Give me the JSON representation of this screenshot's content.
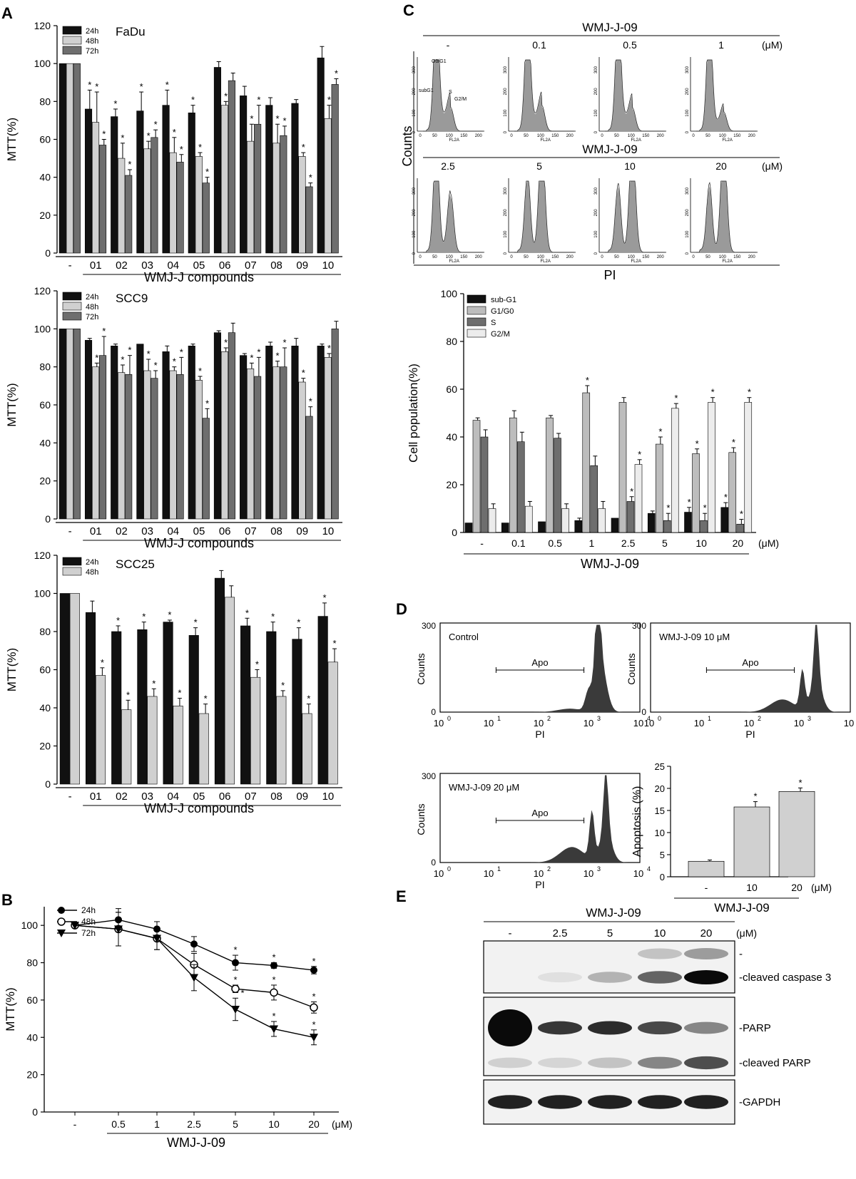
{
  "panels": {
    "A": "A",
    "B": "B",
    "C": "C",
    "D": "D",
    "E": "E"
  },
  "chart_data": [
    {
      "id": "A1",
      "type": "bar",
      "title": "FaDu",
      "xlabel": "WMJ-J compounds",
      "ylabel": "MTT(%)",
      "ylim": [
        0,
        120
      ],
      "yticks": [
        0,
        20,
        40,
        60,
        80,
        100,
        120
      ],
      "categories": [
        "-",
        "01",
        "02",
        "03",
        "04",
        "05",
        "06",
        "07",
        "08",
        "09",
        "10"
      ],
      "series": [
        {
          "name": "24h",
          "color": "#111111",
          "values": [
            100,
            76,
            72,
            75,
            78,
            74,
            98,
            83,
            78,
            79,
            103
          ],
          "err": [
            0,
            10,
            4,
            10,
            8,
            4,
            3,
            5,
            4,
            2,
            6
          ],
          "sig": [
            false,
            true,
            true,
            true,
            true,
            true,
            false,
            false,
            false,
            false,
            false
          ]
        },
        {
          "name": "48h",
          "color": "#d0d0d0",
          "values": [
            100,
            69,
            50,
            55,
            53,
            51,
            78,
            59,
            58,
            51,
            71
          ],
          "err": [
            0,
            16,
            8,
            4,
            8,
            2,
            2,
            9,
            10,
            2,
            7
          ],
          "sig": [
            false,
            true,
            true,
            true,
            true,
            true,
            true,
            true,
            true,
            true,
            true
          ]
        },
        {
          "name": "72h",
          "color": "#6e6e6e",
          "values": [
            100,
            57,
            41,
            61,
            48,
            37,
            91,
            68,
            62,
            35,
            89
          ],
          "err": [
            0,
            3,
            3,
            4,
            4,
            3,
            4,
            10,
            5,
            2,
            3
          ],
          "sig": [
            false,
            true,
            true,
            true,
            true,
            true,
            false,
            true,
            true,
            true,
            true
          ]
        }
      ]
    },
    {
      "id": "A2",
      "type": "bar",
      "title": "SCC9",
      "xlabel": "WMJ-J compounds",
      "ylabel": "MTT(%)",
      "ylim": [
        0,
        120
      ],
      "yticks": [
        0,
        20,
        40,
        60,
        80,
        100,
        120
      ],
      "categories": [
        "-",
        "01",
        "02",
        "03",
        "04",
        "05",
        "06",
        "07",
        "08",
        "09",
        "10"
      ],
      "series": [
        {
          "name": "24h",
          "color": "#111111",
          "values": [
            100,
            94,
            91,
            92,
            88,
            91,
            98,
            86,
            91,
            91,
            91
          ],
          "err": [
            0,
            1,
            1,
            0,
            3,
            1,
            1,
            1,
            2,
            4,
            1
          ],
          "sig": [
            false,
            false,
            false,
            false,
            false,
            false,
            false,
            false,
            false,
            false,
            false
          ]
        },
        {
          "name": "48h",
          "color": "#d0d0d0",
          "values": [
            100,
            80,
            77,
            78,
            78,
            73,
            88,
            79,
            80,
            72,
            85
          ],
          "err": [
            0,
            2,
            4,
            6,
            2,
            2,
            2,
            3,
            3,
            2,
            2
          ],
          "sig": [
            false,
            true,
            true,
            true,
            true,
            true,
            true,
            true,
            true,
            true,
            true
          ]
        },
        {
          "name": "72h",
          "color": "#6e6e6e",
          "values": [
            100,
            86,
            76,
            74,
            76,
            53,
            98,
            75,
            80,
            54,
            100
          ],
          "err": [
            0,
            10,
            10,
            4,
            9,
            5,
            5,
            10,
            10,
            5,
            4
          ],
          "sig": [
            false,
            true,
            true,
            true,
            true,
            true,
            false,
            true,
            true,
            true,
            false
          ]
        }
      ]
    },
    {
      "id": "A3",
      "type": "bar",
      "title": "SCC25",
      "xlabel": "WMJ-J compounds",
      "ylabel": "MTT(%)",
      "ylim": [
        0,
        120
      ],
      "yticks": [
        0,
        20,
        40,
        60,
        80,
        100,
        120
      ],
      "categories": [
        "-",
        "01",
        "02",
        "03",
        "04",
        "05",
        "06",
        "07",
        "08",
        "09",
        "10"
      ],
      "series": [
        {
          "name": "24h",
          "color": "#111111",
          "values": [
            100,
            90,
            80,
            81,
            85,
            78,
            108,
            83,
            80,
            76,
            88
          ],
          "err": [
            0,
            6,
            3,
            4,
            1,
            4,
            4,
            4,
            5,
            6,
            7
          ],
          "sig": [
            false,
            false,
            true,
            true,
            true,
            true,
            false,
            true,
            true,
            true,
            true
          ]
        },
        {
          "name": "48h",
          "color": "#d0d0d0",
          "values": [
            100,
            57,
            39,
            46,
            41,
            37,
            98,
            56,
            46,
            37,
            64
          ],
          "err": [
            0,
            4,
            5,
            4,
            4,
            5,
            6,
            4,
            3,
            5,
            7
          ],
          "sig": [
            false,
            true,
            true,
            true,
            true,
            true,
            false,
            true,
            true,
            true,
            true
          ]
        }
      ]
    },
    {
      "id": "B",
      "type": "line",
      "xlabel": "WMJ-J-09",
      "ylabel": "MTT(%)",
      "ylim": [
        0,
        110
      ],
      "yticks": [
        0,
        20,
        40,
        60,
        80,
        100
      ],
      "unit": "(μM)",
      "categories": [
        "-",
        "0.5",
        "1",
        "2.5",
        "5",
        "10",
        "20"
      ],
      "series": [
        {
          "name": "24h",
          "marker": "filled-circle",
          "values": [
            100,
            103,
            98,
            90,
            80,
            78.5,
            76
          ],
          "err": [
            0,
            6,
            4,
            4,
            4,
            1.5,
            2
          ],
          "sig": [
            false,
            false,
            false,
            false,
            true,
            true,
            true
          ]
        },
        {
          "name": "48h",
          "marker": "open-circle",
          "values": [
            100,
            98,
            93,
            79,
            66,
            64,
            56
          ],
          "err": [
            0,
            9,
            6,
            6,
            2,
            4,
            3
          ],
          "sig": [
            false,
            false,
            false,
            false,
            true,
            true,
            true
          ]
        },
        {
          "name": "72h",
          "marker": "filled-triangle",
          "values": [
            100,
            98,
            93,
            72,
            55,
            44.5,
            40
          ],
          "err": [
            0,
            9,
            6,
            7,
            6,
            4,
            4
          ],
          "sig": [
            false,
            false,
            false,
            false,
            true,
            true,
            true
          ]
        }
      ]
    },
    {
      "id": "C-bar",
      "type": "bar",
      "xlabel": "WMJ-J-09",
      "ylabel": "Cell population(%)",
      "ylim": [
        0,
        100
      ],
      "yticks": [
        0,
        20,
        40,
        60,
        80,
        100
      ],
      "unit": "(μM)",
      "categories": [
        "-",
        "0.1",
        "0.5",
        "1",
        "2.5",
        "5",
        "10",
        "20"
      ],
      "series": [
        {
          "name": "sub-G1",
          "color": "#111111",
          "values": [
            4,
            4,
            4.5,
            5,
            6,
            8,
            8.5,
            10.5
          ],
          "err": [
            0,
            0,
            0,
            1,
            0,
            1,
            2,
            2
          ],
          "sig": [
            false,
            false,
            false,
            false,
            false,
            false,
            true,
            true
          ]
        },
        {
          "name": "G1/G0",
          "color": "#bdbdbd",
          "values": [
            47,
            48,
            48,
            58.5,
            54.5,
            37,
            33,
            33.5
          ],
          "err": [
            1,
            3,
            1,
            3,
            2,
            3,
            2,
            2
          ],
          "sig": [
            false,
            false,
            false,
            true,
            false,
            true,
            true,
            true
          ]
        },
        {
          "name": "S",
          "color": "#6e6e6e",
          "values": [
            40,
            38,
            39.5,
            28,
            13,
            5,
            5,
            3.5
          ],
          "err": [
            3,
            4,
            2,
            4,
            2,
            3,
            3,
            2
          ],
          "sig": [
            false,
            false,
            false,
            false,
            true,
            true,
            true,
            true
          ]
        },
        {
          "name": "G2/M",
          "color": "#ececec",
          "values": [
            10,
            11,
            10,
            10,
            28.5,
            52,
            54.5,
            54.5
          ],
          "err": [
            2,
            2,
            2,
            3,
            2,
            2,
            2,
            2
          ],
          "sig": [
            false,
            false,
            false,
            false,
            true,
            true,
            true,
            true
          ]
        }
      ]
    },
    {
      "id": "D-bar",
      "type": "bar",
      "xlabel": "WMJ-J-09",
      "ylabel": "Apoptosis (%)",
      "ylim": [
        0,
        25
      ],
      "yticks": [
        0,
        5,
        10,
        15,
        20,
        25
      ],
      "unit": "(μM)",
      "categories": [
        "-",
        "10",
        "20"
      ],
      "series": [
        {
          "name": "Apoptosis",
          "color": "#d0d0d0",
          "values": [
            3.5,
            15.8,
            19.3
          ],
          "err": [
            0.3,
            1.2,
            0.8
          ],
          "sig": [
            false,
            true,
            true
          ]
        }
      ]
    }
  ],
  "panelC": {
    "top_title": "WMJ-J-09",
    "row2_title": "WMJ-J-09",
    "unit": "(μM)",
    "ylabel": "Counts",
    "xlabel": "PI",
    "hist_yticks": [
      "0",
      "100",
      "200",
      "300"
    ],
    "hist_xticks": [
      "0",
      "50",
      "100",
      "150",
      "200"
    ],
    "axis_label": "FL2A",
    "phase_labels": [
      "G0/G1",
      "subG1",
      "S",
      "G2/M"
    ],
    "histograms": [
      {
        "conc": "-",
        "subg1": 0.04,
        "g1": 0.47,
        "s": 0.4,
        "g2": 0.1
      },
      {
        "conc": "0.1",
        "subg1": 0.04,
        "g1": 0.48,
        "s": 0.38,
        "g2": 0.11
      },
      {
        "conc": "0.5",
        "subg1": 0.045,
        "g1": 0.48,
        "s": 0.395,
        "g2": 0.1
      },
      {
        "conc": "1",
        "subg1": 0.05,
        "g1": 0.585,
        "s": 0.28,
        "g2": 0.1
      },
      {
        "conc": "2.5",
        "subg1": 0.06,
        "g1": 0.545,
        "s": 0.13,
        "g2": 0.285
      },
      {
        "conc": "5",
        "subg1": 0.08,
        "g1": 0.37,
        "s": 0.05,
        "g2": 0.52
      },
      {
        "conc": "10",
        "subg1": 0.085,
        "g1": 0.33,
        "s": 0.05,
        "g2": 0.545
      },
      {
        "conc": "20",
        "subg1": 0.105,
        "g1": 0.335,
        "s": 0.035,
        "g2": 0.545
      }
    ]
  },
  "panelD": {
    "ylabel": "Counts",
    "xlabel": "PI",
    "yticks": [
      "0",
      "300"
    ],
    "xticks": [
      "10",
      "10",
      "10",
      "10",
      "10"
    ],
    "xexp": [
      "0",
      "1",
      "2",
      "3",
      "4"
    ],
    "gate_label": "Apo",
    "plots": [
      {
        "label": "Control",
        "apoptosis": 3.5
      },
      {
        "label": "WMJ-J-09 10 μM",
        "apoptosis": 15.8
      },
      {
        "label": "WMJ-J-09 20 μM",
        "apoptosis": 19.3
      }
    ]
  },
  "panelE": {
    "title": "WMJ-J-09",
    "unit": "(μM)",
    "lanes": [
      "-",
      "2.5",
      "5",
      "10",
      "20"
    ],
    "blots": [
      {
        "labels": [
          "-",
          "-cleaved caspase 3"
        ],
        "bands": [
          [
            0,
            0,
            0,
            0.18,
            0.35
          ],
          [
            0,
            0.05,
            0.25,
            0.6,
            1.0
          ]
        ]
      },
      {
        "labels": [
          "-PARP",
          "-cleaved PARP"
        ],
        "bands": [
          [
            1.0,
            0.8,
            0.85,
            0.72,
            0.45
          ],
          [
            0.12,
            0.1,
            0.18,
            0.45,
            0.7
          ]
        ]
      },
      {
        "labels": [
          "-GAPDH"
        ],
        "bands": [
          [
            0.9,
            0.9,
            0.9,
            0.9,
            0.9
          ]
        ]
      }
    ]
  }
}
